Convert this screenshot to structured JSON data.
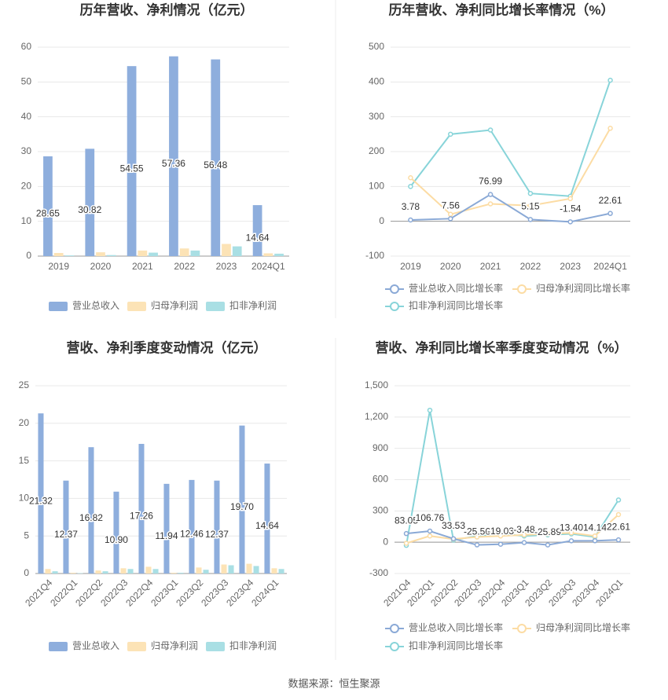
{
  "chart_data": [
    {
      "type": "bar",
      "title": "历年营收、净利情况（亿元）",
      "categories": [
        "2019",
        "2020",
        "2021",
        "2022",
        "2023",
        "2024Q1"
      ],
      "series": [
        {
          "name": "营业总收入",
          "color": "#8eaedd",
          "show_labels": true,
          "values": [
            28.65,
            30.82,
            54.55,
            57.36,
            56.48,
            14.64
          ]
        },
        {
          "name": "归母净利润",
          "color": "#fce3b6",
          "values": [
            0.9,
            1.1,
            1.6,
            2.2,
            3.5,
            0.8
          ]
        },
        {
          "name": "扣非净利润",
          "color": "#a9dfe4",
          "values": [
            0.2,
            0.3,
            1.0,
            1.6,
            2.8,
            0.7
          ]
        }
      ],
      "ylim": [
        0,
        60
      ],
      "yticks": [
        0,
        10,
        20,
        30,
        40,
        50,
        60
      ],
      "grid": true
    },
    {
      "type": "line",
      "title": "历年营收、净利同比增长率情况（%）",
      "categories": [
        "2019",
        "2020",
        "2021",
        "2022",
        "2023",
        "2024Q1"
      ],
      "series": [
        {
          "name": "营业总收入同比增长率",
          "color": "#8aa9d6",
          "show_labels": true,
          "values": [
            3.78,
            7.56,
            76.99,
            5.15,
            -1.54,
            22.61
          ]
        },
        {
          "name": "归母净利润同比增长率",
          "color": "#fcdca4",
          "values": [
            125,
            20,
            50,
            45,
            65,
            267
          ]
        },
        {
          "name": "扣非净利润同比增长率",
          "color": "#88d4d9",
          "values": [
            100,
            250,
            262,
            80,
            72,
            405
          ]
        }
      ],
      "ylim": [
        -100,
        500
      ],
      "yticks": [
        -100,
        0,
        100,
        200,
        300,
        400,
        500
      ],
      "grid": true
    },
    {
      "type": "bar",
      "title": "营收、净利季度变动情况（亿元）",
      "categories": [
        "2021Q4",
        "2022Q1",
        "2022Q2",
        "2022Q3",
        "2022Q4",
        "2023Q1",
        "2023Q2",
        "2023Q3",
        "2023Q4",
        "2024Q1"
      ],
      "series": [
        {
          "name": "营业总收入",
          "color": "#8eaedd",
          "show_labels": true,
          "values": [
            21.32,
            12.37,
            16.82,
            10.9,
            17.26,
            11.94,
            12.46,
            12.37,
            19.7,
            14.64
          ],
          "value_labels": [
            "21.32",
            "12.37",
            "16.82",
            "10.90",
            "17.26",
            "11.94",
            "12.46",
            "12.37",
            "19.70",
            "14.64"
          ]
        },
        {
          "name": "归母净利润",
          "color": "#fce3b6",
          "values": [
            0.6,
            0.1,
            0.4,
            0.7,
            0.9,
            0.1,
            0.8,
            1.2,
            1.3,
            0.7
          ]
        },
        {
          "name": "扣非净利润",
          "color": "#a9dfe4",
          "values": [
            0.3,
            0.05,
            0.3,
            0.6,
            0.6,
            0.1,
            0.5,
            1.1,
            1.0,
            0.6
          ]
        }
      ],
      "ylim": [
        0,
        25
      ],
      "yticks": [
        0,
        5,
        10,
        15,
        20,
        25
      ],
      "grid": true
    },
    {
      "type": "line",
      "title": "营收、净利同比增长率季度变动情况（%）",
      "categories": [
        "2021Q4",
        "2022Q1",
        "2022Q2",
        "2022Q3",
        "2022Q4",
        "2023Q1",
        "2023Q2",
        "2023Q3",
        "2023Q4",
        "2024Q1"
      ],
      "series": [
        {
          "name": "营业总收入同比增长率",
          "color": "#8aa9d6",
          "show_labels": true,
          "values": [
            83.05,
            106.76,
            33.53,
            -25.56,
            -19.03,
            -3.48,
            -25.89,
            13.4,
            14.14,
            22.61
          ],
          "value_labels": [
            "83.05",
            "106.76",
            "33.53",
            "-25.56",
            "-19.03",
            "-3.48",
            "-25.89",
            "13.40",
            "14.14",
            "22.61"
          ]
        },
        {
          "name": "归母净利润同比增长率",
          "color": "#fcdca4",
          "values": [
            -10,
            60,
            30,
            50,
            60,
            70,
            80,
            90,
            60,
            265
          ]
        },
        {
          "name": "扣非净利润同比增长率",
          "color": "#88d4d9",
          "values": [
            -30,
            1265,
            20,
            60,
            80,
            60,
            70,
            80,
            50,
            405
          ]
        }
      ],
      "ylim": [
        -300,
        1500
      ],
      "yticks": [
        -300,
        0,
        300,
        600,
        900,
        {
          "value": 1200,
          "label": "1,200"
        },
        {
          "value": 1500,
          "label": "1,500"
        }
      ],
      "grid": true
    }
  ],
  "source": "数据来源：恒生聚源"
}
